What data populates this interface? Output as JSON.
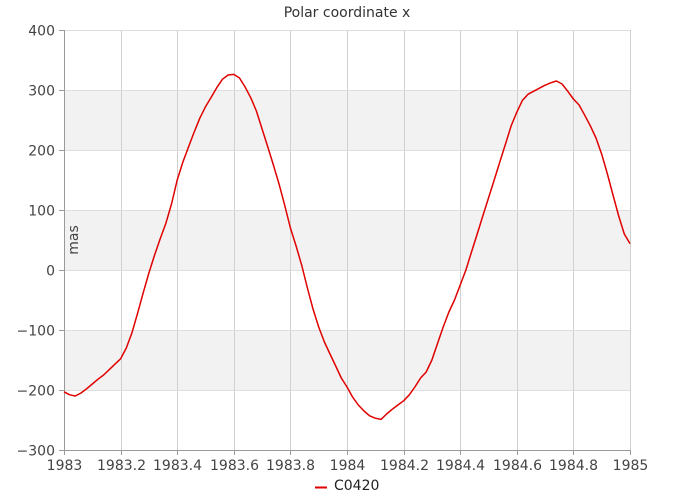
{
  "chart_data": {
    "type": "line",
    "title": "Polar coordinate x",
    "xlabel": "",
    "ylabel": "mas",
    "xlim": [
      1983,
      1985
    ],
    "ylim": [
      -300,
      400
    ],
    "x_ticks": [
      "1983",
      "1983.2",
      "1983.4",
      "1983.6",
      "1983.8",
      "1984",
      "1984.2",
      "1984.4",
      "1984.6",
      "1984.8",
      "1985"
    ],
    "y_ticks": [
      "400",
      "300",
      "200",
      "100",
      "0",
      "−100",
      "−200",
      "−300"
    ],
    "grid": true,
    "legend_position": "bottom",
    "series": [
      {
        "name": "C0420",
        "color": "#e00000",
        "x": [
          1983.0,
          1983.02,
          1983.04,
          1983.06,
          1983.08,
          1983.1,
          1983.12,
          1983.14,
          1983.16,
          1983.18,
          1983.2,
          1983.22,
          1983.24,
          1983.26,
          1983.28,
          1983.3,
          1983.32,
          1983.34,
          1983.36,
          1983.38,
          1983.4,
          1983.42,
          1983.44,
          1983.46,
          1983.48,
          1983.5,
          1983.52,
          1983.54,
          1983.56,
          1983.58,
          1983.6,
          1983.62,
          1983.64,
          1983.66,
          1983.68,
          1983.7,
          1983.72,
          1983.74,
          1983.76,
          1983.78,
          1983.8,
          1983.82,
          1983.84,
          1983.86,
          1983.88,
          1983.9,
          1983.92,
          1983.94,
          1983.96,
          1983.98,
          1984.0,
          1984.02,
          1984.04,
          1984.06,
          1984.08,
          1984.1,
          1984.12,
          1984.14,
          1984.16,
          1984.18,
          1984.2,
          1984.22,
          1984.24,
          1984.26,
          1984.28,
          1984.3,
          1984.32,
          1984.34,
          1984.36,
          1984.38,
          1984.4,
          1984.42,
          1984.44,
          1984.46,
          1984.48,
          1984.5,
          1984.52,
          1984.54,
          1984.56,
          1984.58,
          1984.6,
          1984.62,
          1984.64,
          1984.66,
          1984.68,
          1984.7,
          1984.72,
          1984.74,
          1984.76,
          1984.78,
          1984.8,
          1984.82,
          1984.84,
          1984.86,
          1984.88,
          1984.9,
          1984.92,
          1984.94,
          1984.96,
          1984.98,
          1985.0
        ],
        "y": [
          -203,
          -208,
          -210,
          -205,
          -198,
          -190,
          -182,
          -175,
          -166,
          -157,
          -148,
          -130,
          -105,
          -72,
          -38,
          -5,
          25,
          52,
          78,
          110,
          150,
          180,
          205,
          230,
          253,
          272,
          288,
          304,
          318,
          325,
          326,
          320,
          305,
          287,
          265,
          235,
          205,
          175,
          143,
          108,
          70,
          40,
          8,
          -30,
          -65,
          -95,
          -120,
          -140,
          -160,
          -180,
          -195,
          -212,
          -225,
          -235,
          -243,
          -247,
          -249,
          -240,
          -232,
          -225,
          -218,
          -208,
          -195,
          -180,
          -170,
          -150,
          -122,
          -95,
          -70,
          -50,
          -25,
          0,
          30,
          60,
          90,
          120,
          150,
          180,
          210,
          240,
          263,
          283,
          293,
          298,
          303,
          308,
          312,
          315,
          310,
          298,
          285,
          275,
          258,
          240,
          220,
          193,
          160,
          125,
          90,
          60,
          44
        ]
      }
    ]
  }
}
